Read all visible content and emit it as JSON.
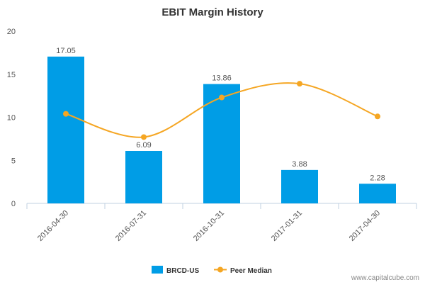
{
  "chart_data": {
    "type": "bar",
    "title": "EBIT Margin History",
    "xlabel": "",
    "ylabel": "",
    "ylim": [
      0,
      20
    ],
    "yticks": [
      0,
      5,
      10,
      15,
      20
    ],
    "categories": [
      "2016-04-30",
      "2016-07-31",
      "2016-10-31",
      "2017-01-31",
      "2017-04-30"
    ],
    "series": [
      {
        "name": "BRCD-US",
        "kind": "bar",
        "color": "#009de6",
        "values": [
          17.05,
          6.09,
          13.86,
          3.88,
          2.28
        ],
        "value_labels": [
          "17.05",
          "6.09",
          "13.86",
          "3.88",
          "2.28"
        ]
      },
      {
        "name": "Peer Median",
        "kind": "line-smooth",
        "color": "#f5a623",
        "values": [
          10.4,
          7.7,
          12.3,
          13.9,
          10.1
        ]
      }
    ],
    "legend_position": "bottom-center",
    "grid": false
  },
  "footer": {
    "source": "www.capitalcube.com"
  }
}
